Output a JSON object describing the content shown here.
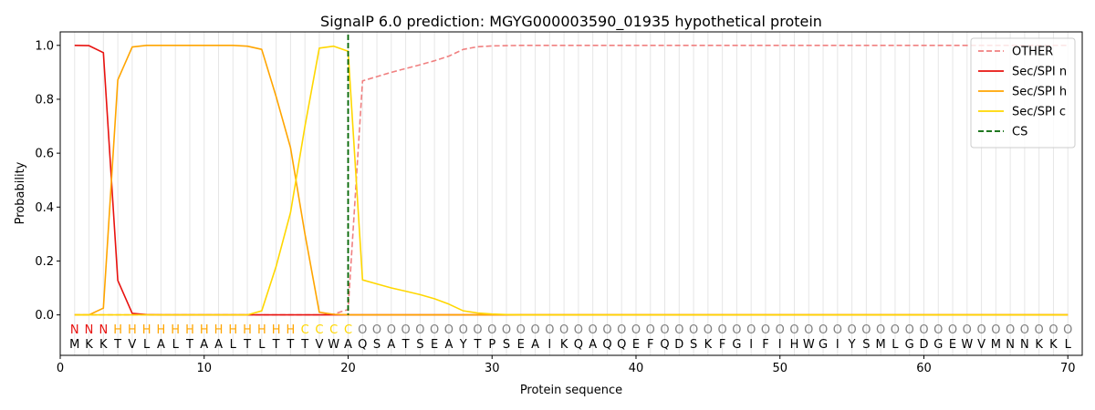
{
  "chart_data": {
    "type": "line",
    "title": "SignalP 6.0 prediction: MGYG000003590_01935 hypothetical protein",
    "xlabel": "Protein sequence",
    "ylabel": "Probability",
    "xlim": [
      0,
      71
    ],
    "ylim": [
      -0.15,
      1.05
    ],
    "xticks": [
      0,
      10,
      20,
      30,
      40,
      50,
      60,
      70
    ],
    "yticks": [
      0.0,
      0.2,
      0.4,
      0.6,
      0.8,
      1.0
    ],
    "ytick_labels": [
      "0.0",
      "0.2",
      "0.4",
      "0.6",
      "0.8",
      "1.0"
    ],
    "grid": "vertical lines at each residue",
    "legend_position": "top-right",
    "x": [
      1,
      2,
      3,
      4,
      5,
      6,
      7,
      8,
      9,
      10,
      11,
      12,
      13,
      14,
      15,
      16,
      17,
      18,
      19,
      20,
      21,
      22,
      23,
      24,
      25,
      26,
      27,
      28,
      29,
      30,
      31,
      32,
      33,
      34,
      35,
      36,
      37,
      38,
      39,
      40,
      41,
      42,
      43,
      44,
      45,
      46,
      47,
      48,
      49,
      50,
      51,
      52,
      53,
      54,
      55,
      56,
      57,
      58,
      59,
      60,
      61,
      62,
      63,
      64,
      65,
      66,
      67,
      68,
      69,
      70
    ],
    "sequence": [
      "M",
      "K",
      "K",
      "T",
      "V",
      "L",
      "A",
      "L",
      "T",
      "A",
      "A",
      "L",
      "T",
      "L",
      "T",
      "T",
      "T",
      "V",
      "W",
      "A",
      "Q",
      "S",
      "A",
      "T",
      "S",
      "E",
      "A",
      "Y",
      "T",
      "P",
      "S",
      "E",
      "A",
      "I",
      "K",
      "Q",
      "A",
      "Q",
      "Q",
      "E",
      "F",
      "Q",
      "D",
      "S",
      "K",
      "F",
      "G",
      "I",
      "F",
      "I",
      "H",
      "W",
      "G",
      "I",
      "Y",
      "S",
      "M",
      "L",
      "G",
      "D",
      "G",
      "E",
      "W",
      "V",
      "M",
      "N",
      "N",
      "K",
      "K",
      "L"
    ],
    "labels": [
      "N",
      "N",
      "N",
      "H",
      "H",
      "H",
      "H",
      "H",
      "H",
      "H",
      "H",
      "H",
      "H",
      "H",
      "H",
      "H",
      "C",
      "C",
      "C",
      "C",
      "O",
      "O",
      "O",
      "O",
      "O",
      "O",
      "O",
      "O",
      "O",
      "O",
      "O",
      "O",
      "O",
      "O",
      "O",
      "O",
      "O",
      "O",
      "O",
      "O",
      "O",
      "O",
      "O",
      "O",
      "O",
      "O",
      "O",
      "O",
      "O",
      "O",
      "O",
      "O",
      "O",
      "O",
      "O",
      "O",
      "O",
      "O",
      "O",
      "O",
      "O",
      "O",
      "O",
      "O",
      "O",
      "O",
      "O",
      "O",
      "O",
      "O"
    ],
    "label_colors": {
      "N": "#e8120f",
      "H": "#ffa500",
      "C": "#ffd700",
      "O": "#808080"
    },
    "cleavage_site": 20,
    "series": [
      {
        "name": "OTHER",
        "color": "#f08080",
        "dash": "dashed",
        "values": [
          0,
          0,
          0,
          0,
          0,
          0,
          0,
          0,
          0,
          0,
          0,
          0,
          0,
          0,
          0,
          0,
          0,
          0,
          0.003,
          0.02,
          0.868,
          0.884,
          0.9,
          0.914,
          0.928,
          0.943,
          0.96,
          0.985,
          0.995,
          0.998,
          0.999,
          1.0,
          1.0,
          1.0,
          1.0,
          1.0,
          1.0,
          1.0,
          1.0,
          1.0,
          1.0,
          1.0,
          1.0,
          1.0,
          1.0,
          1.0,
          1.0,
          1.0,
          1.0,
          1.0,
          1.0,
          1.0,
          1.0,
          1.0,
          1.0,
          1.0,
          1.0,
          1.0,
          1.0,
          1.0,
          1.0,
          1.0,
          1.0,
          1.0,
          1.0,
          1.0,
          1.0,
          1.0,
          1.0,
          1.0
        ]
      },
      {
        "name": "Sec/SPI n",
        "color": "#e8120f",
        "dash": "solid",
        "values": [
          1.0,
          0.999,
          0.973,
          0.128,
          0.006,
          0.001,
          0,
          0,
          0,
          0,
          0,
          0,
          0,
          0,
          0,
          0,
          0,
          0,
          0,
          0,
          0,
          0,
          0,
          0,
          0,
          0,
          0,
          0,
          0,
          0,
          0,
          0,
          0,
          0,
          0,
          0,
          0,
          0,
          0,
          0,
          0,
          0,
          0,
          0,
          0,
          0,
          0,
          0,
          0,
          0,
          0,
          0,
          0,
          0,
          0,
          0,
          0,
          0,
          0,
          0,
          0,
          0,
          0,
          0,
          0,
          0,
          0,
          0,
          0,
          0
        ]
      },
      {
        "name": "Sec/SPI h",
        "color": "#ffa500",
        "dash": "solid",
        "values": [
          0,
          0,
          0.025,
          0.872,
          0.994,
          1.0,
          1.0,
          1.0,
          1.0,
          1.0,
          1.0,
          1.0,
          0.997,
          0.985,
          0.81,
          0.62,
          0.3,
          0.01,
          0.002,
          0,
          0,
          0,
          0,
          0,
          0,
          0,
          0,
          0,
          0,
          0,
          0,
          0,
          0,
          0,
          0,
          0,
          0,
          0,
          0,
          0,
          0,
          0,
          0,
          0,
          0,
          0,
          0,
          0,
          0,
          0,
          0,
          0,
          0,
          0,
          0,
          0,
          0,
          0,
          0,
          0,
          0,
          0,
          0,
          0,
          0,
          0,
          0,
          0,
          0,
          0
        ]
      },
      {
        "name": "Sec/SPI c",
        "color": "#ffd700",
        "dash": "solid",
        "values": [
          0,
          0,
          0,
          0,
          0,
          0,
          0,
          0,
          0,
          0,
          0,
          0,
          0,
          0.015,
          0.18,
          0.38,
          0.7,
          0.99,
          0.997,
          0.978,
          0.13,
          0.115,
          0.1,
          0.088,
          0.075,
          0.06,
          0.04,
          0.015,
          0.007,
          0.003,
          0.001,
          0,
          0,
          0,
          0,
          0,
          0,
          0,
          0,
          0,
          0,
          0,
          0,
          0,
          0,
          0,
          0,
          0,
          0,
          0,
          0,
          0,
          0,
          0,
          0,
          0,
          0,
          0,
          0,
          0,
          0,
          0,
          0,
          0,
          0,
          0,
          0,
          0,
          0,
          0
        ]
      }
    ],
    "cs_series": {
      "name": "CS",
      "color": "#006400",
      "dash": "dashed"
    }
  }
}
